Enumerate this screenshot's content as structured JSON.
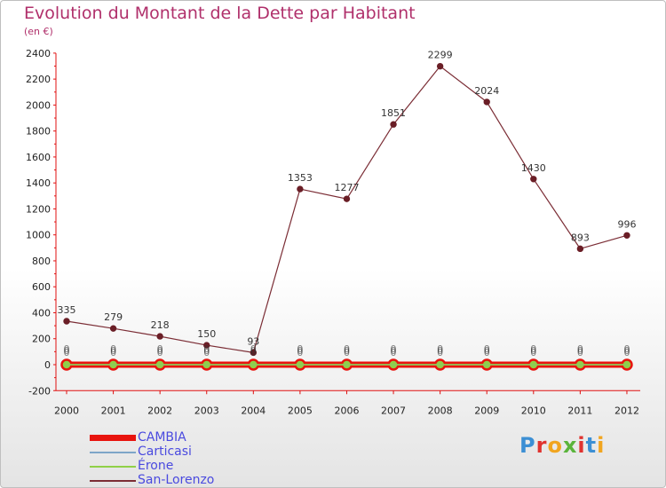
{
  "chart_data": {
    "type": "line",
    "title": "Evolution du Montant de la Dette par Habitant",
    "subtitle": "(en €)",
    "xlabel": "",
    "ylabel": "",
    "x": [
      "2000",
      "2001",
      "2002",
      "2003",
      "2004",
      "2005",
      "2006",
      "2007",
      "2008",
      "2009",
      "2010",
      "2011",
      "2012"
    ],
    "ylim": [
      -200,
      2400
    ],
    "yticks": [
      -200,
      0,
      200,
      400,
      600,
      800,
      1000,
      1200,
      1400,
      1600,
      1800,
      2000,
      2200,
      2400
    ],
    "grid": false,
    "legend_position": "bottom-left",
    "series": [
      {
        "name": "CAMBIA",
        "color": "#e8140e",
        "values": [
          0,
          0,
          0,
          0,
          0,
          0,
          0,
          0,
          0,
          0,
          0,
          0,
          0
        ]
      },
      {
        "name": "Carticasi",
        "color": "#7ea6c8",
        "values": [
          0,
          0,
          0,
          0,
          0,
          0,
          0,
          0,
          0,
          0,
          0,
          0,
          0
        ]
      },
      {
        "name": "Érone",
        "color": "#90d048",
        "values": [
          0,
          0,
          0,
          0,
          0,
          0,
          0,
          0,
          0,
          0,
          0,
          0,
          0
        ]
      },
      {
        "name": "San-Lorenzo",
        "color": "#7b2d35",
        "values": [
          335,
          279,
          218,
          150,
          93,
          1353,
          1277,
          1851,
          2299,
          2024,
          1430,
          893,
          996
        ]
      }
    ]
  },
  "logo": {
    "text": "Proxiti"
  }
}
